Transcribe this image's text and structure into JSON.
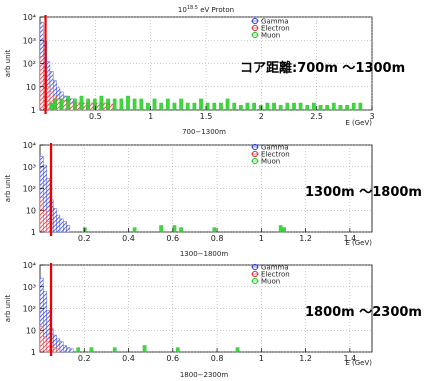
{
  "y_axis_label": "arb unit",
  "x_axis_label": "E (GeV)",
  "legend": [
    "Gamma",
    "Electron",
    "Muon"
  ],
  "colors": {
    "gamma": "#3344dd",
    "electron": "#dd3344",
    "muon": "#22cc22",
    "cut_line": "#ee0000",
    "grid": "#999999"
  },
  "chart_data": [
    {
      "type": "bar",
      "title": "10^18.5 eV Proton",
      "title_prefix": "10",
      "title_exp": "18.5",
      "title_suffix": " eV Proton",
      "bottom_title": "700−1300m",
      "annotation": "コア距離:700m 〜1300m",
      "xlim": [
        0,
        3
      ],
      "ylog": true,
      "ylim": [
        1,
        10000
      ],
      "xticks": [
        0.5,
        1,
        1.5,
        2,
        2.5,
        3
      ],
      "xtick_labels": [
        "0.5",
        "1",
        "1.5",
        "2",
        "2.5",
        "3"
      ],
      "yticks": [
        1,
        10,
        100,
        1000,
        10000
      ],
      "ytick_labels": [
        "1",
        "10",
        "10²",
        "10³",
        "10⁴"
      ],
      "cut_line_x": 0.05,
      "bin_width": 0.03,
      "series": [
        {
          "name": "Gamma",
          "x": [
            0.015,
            0.045,
            0.075,
            0.105,
            0.135,
            0.165,
            0.195,
            0.225,
            0.255,
            0.285,
            0.315,
            0.345,
            0.375,
            0.405,
            0.435,
            0.465,
            0.495,
            0.525,
            0.555,
            0.585,
            0.615
          ],
          "values": [
            6000,
            900,
            120,
            45,
            18,
            9,
            6,
            4,
            3,
            3,
            2,
            2,
            2,
            1.8,
            1.6,
            1.5,
            1.6,
            1.4,
            1.3,
            1.3,
            1.2
          ]
        },
        {
          "name": "Electron",
          "x": [
            0.015,
            0.045,
            0.075,
            0.105,
            0.135,
            0.165,
            0.195,
            0.225,
            0.255,
            0.285,
            0.315,
            0.345,
            0.375,
            0.405,
            0.435,
            0.465,
            0.495,
            0.525,
            0.555,
            0.585,
            0.615,
            0.645
          ],
          "values": [
            200,
            50,
            10,
            6,
            4,
            3,
            3,
            2.5,
            2.5,
            2,
            2,
            2,
            2,
            2,
            2,
            2,
            2,
            2,
            2,
            2,
            2,
            1.8
          ]
        },
        {
          "name": "Muon",
          "x": [
            0.105,
            0.135,
            0.195,
            0.255,
            0.315,
            0.375,
            0.435,
            0.495,
            0.555,
            0.615,
            0.675,
            0.735,
            0.795,
            0.855,
            0.915,
            0.975,
            1.035,
            1.095,
            1.155,
            1.215,
            1.275,
            1.335,
            1.395,
            1.455,
            1.515,
            1.575,
            1.635,
            1.695,
            1.755,
            1.815,
            1.875,
            1.935,
            1.995,
            2.055,
            2.115,
            2.175,
            2.235,
            2.295,
            2.355,
            2.415,
            2.475,
            2.535,
            2.595,
            2.655,
            2.715,
            2.775,
            2.835,
            2.895
          ],
          "values": [
            2,
            3,
            3,
            4,
            3,
            4,
            3,
            3,
            4,
            3,
            3,
            3,
            4,
            3,
            3,
            2,
            3,
            2,
            3,
            2,
            3,
            2,
            2,
            3,
            2,
            2,
            2,
            3,
            2,
            1.6,
            2,
            2,
            1.6,
            2,
            2,
            1.6,
            2,
            2,
            2,
            1.6,
            2,
            1.6,
            1.6,
            2,
            1.6,
            1.6,
            2,
            2
          ]
        }
      ]
    },
    {
      "type": "bar",
      "title": "700−1300m",
      "bottom_title": "1300−1800m",
      "annotation": "1300m 〜1800m",
      "xlim": [
        0,
        1.5
      ],
      "ylog": true,
      "ylim": [
        1,
        10000
      ],
      "xticks": [
        0.2,
        0.4,
        0.6,
        0.8,
        1,
        1.2,
        1.4
      ],
      "xtick_labels": [
        "0.2",
        "0.4",
        "0.6",
        "0.8",
        "1",
        "1.2",
        "1.4"
      ],
      "yticks": [
        1,
        10,
        100,
        1000,
        10000
      ],
      "ytick_labels": [
        "1",
        "10",
        "10²",
        "10³",
        "10⁴"
      ],
      "cut_line_x": 0.05,
      "bin_width": 0.015,
      "series": [
        {
          "name": "Gamma",
          "x": [
            0.0075,
            0.0225,
            0.0375,
            0.0525,
            0.0675,
            0.0825,
            0.0975,
            0.1125,
            0.1275
          ],
          "values": [
            3000,
            1200,
            300,
            30,
            12,
            6,
            4,
            3,
            2
          ]
        },
        {
          "name": "Electron",
          "x": [
            0.0075,
            0.0225,
            0.0375
          ],
          "values": [
            40,
            10,
            3
          ]
        },
        {
          "name": "Muon",
          "x": [
            0.2025,
            0.4275,
            0.5475,
            0.6075,
            0.6375,
            0.7875,
            1.0875,
            1.1025
          ],
          "values": [
            1.6,
            1.6,
            2,
            2,
            1.6,
            1.6,
            2,
            1.6
          ]
        }
      ]
    },
    {
      "type": "bar",
      "title": "1300−1800m",
      "bottom_title": "1800−2300m",
      "annotation": "1800m 〜2300m",
      "xlim": [
        0,
        1.5
      ],
      "ylog": true,
      "ylim": [
        1,
        10000
      ],
      "xticks": [
        0.2,
        0.4,
        0.6,
        0.8,
        1,
        1.2,
        1.4
      ],
      "xtick_labels": [
        "0.2",
        "0.4",
        "0.6",
        "0.8",
        "1",
        "1.2",
        "1.4"
      ],
      "yticks": [
        1,
        10,
        100,
        1000,
        10000
      ],
      "ytick_labels": [
        "1",
        "10",
        "10²",
        "10³",
        "10⁴"
      ],
      "cut_line_x": 0.05,
      "bin_width": 0.015,
      "series": [
        {
          "name": "Gamma",
          "x": [
            0.0075,
            0.0225,
            0.0375,
            0.0525,
            0.0675,
            0.0825,
            0.0975,
            0.1125,
            0.1275,
            0.1425
          ],
          "values": [
            2500,
            600,
            80,
            12,
            6,
            4,
            3,
            2,
            1.6,
            1.4
          ]
        },
        {
          "name": "Electron",
          "x": [
            0.0075,
            0.0225,
            0.0375,
            0.0525,
            0.0675,
            0.0825
          ],
          "values": [
            15,
            5,
            3,
            2,
            1.6,
            1.4
          ]
        },
        {
          "name": "Muon",
          "x": [
            0.1725,
            0.2325,
            0.3375,
            0.4725,
            0.6225,
            0.8925
          ],
          "values": [
            1.6,
            1.6,
            1.6,
            2,
            1.6,
            1.6
          ]
        }
      ]
    }
  ]
}
